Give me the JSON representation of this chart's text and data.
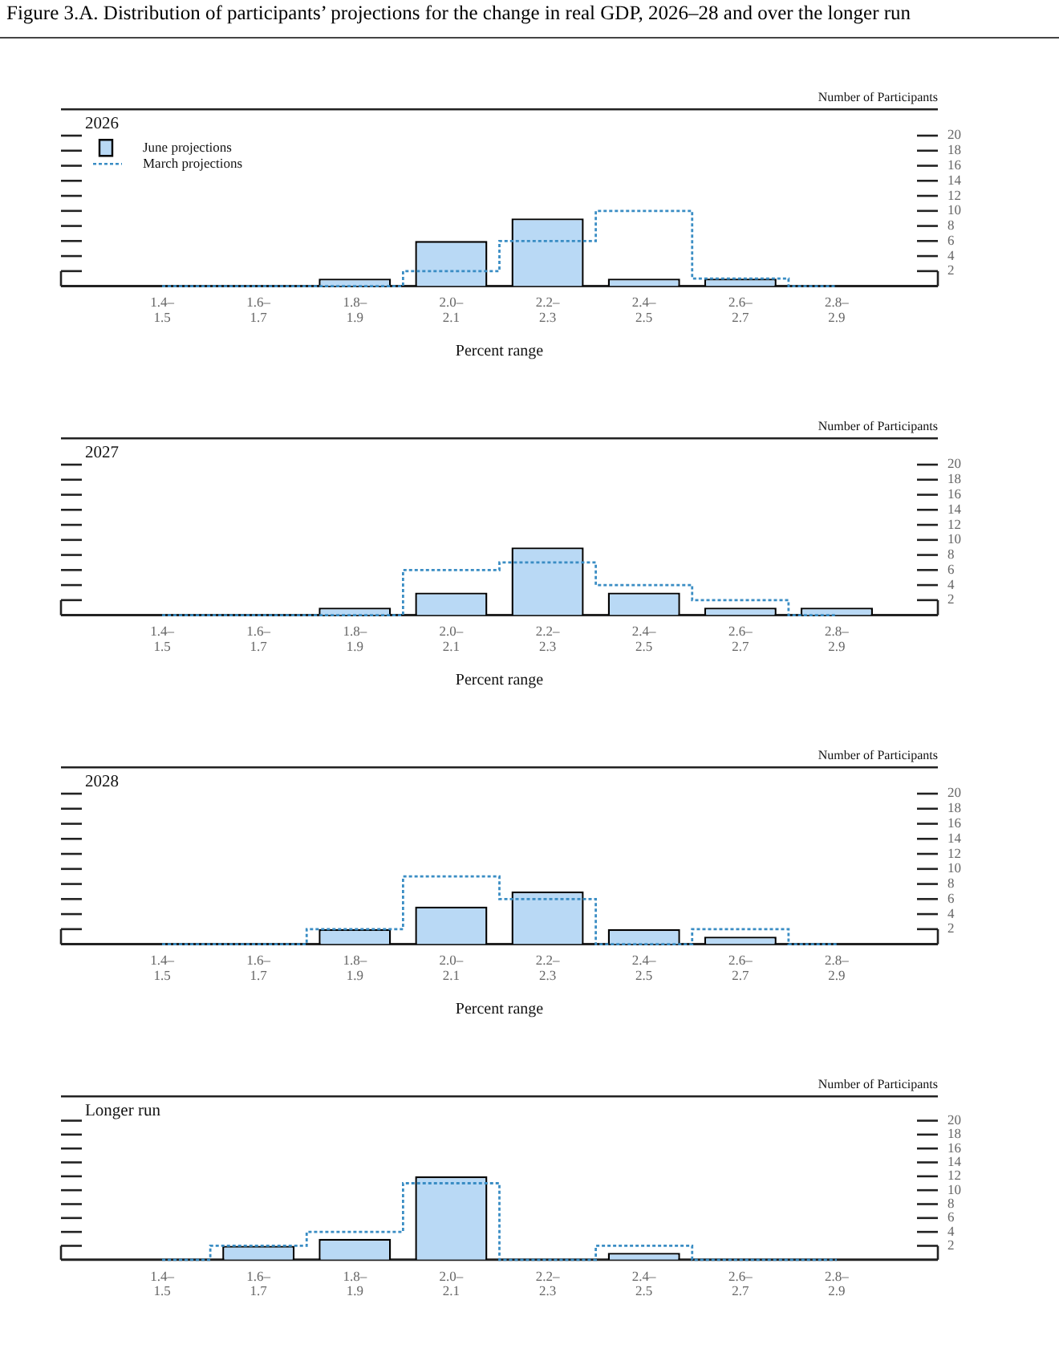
{
  "chart_data": [
    {
      "type": "bar",
      "title": "Figure 3.A. Distribution of participants’ projections for the change in real GDP, 2026–28 and over the longer run",
      "subtitle": "2026",
      "xlabel": "Percent range",
      "ylabel": "Number of Participants",
      "categories": [
        "1.4–1.5",
        "1.6–1.7",
        "1.8–1.9",
        "2.0–2.1",
        "2.2–2.3",
        "2.4–2.5",
        "2.6–2.7",
        "2.8–2.9"
      ],
      "series": [
        {
          "name": "June projections",
          "type": "bar",
          "color": "#b9d9f5",
          "values": [
            0,
            0,
            1,
            6,
            9,
            1,
            1,
            0
          ]
        },
        {
          "name": "March projections",
          "type": "step",
          "color": "#3a8dc4",
          "values": [
            0,
            0,
            0,
            2,
            6,
            10,
            1,
            0
          ]
        }
      ],
      "ylim": [
        0,
        23.5
      ],
      "yticks": [
        2,
        4,
        6,
        8,
        10,
        12,
        14,
        16,
        18,
        20
      ],
      "grid": false,
      "legend": "top left",
      "line_style": "dotted"
    },
    {
      "type": "bar",
      "subtitle": "2027",
      "xlabel": "Percent range",
      "ylabel": "Number of Participants",
      "categories": [
        "1.4–1.5",
        "1.6–1.7",
        "1.8–1.9",
        "2.0–2.1",
        "2.2–2.3",
        "2.4–2.5",
        "2.6–2.7",
        "2.8–2.9"
      ],
      "series": [
        {
          "type": "bar",
          "color": "#b9d9f5",
          "values": [
            0,
            0,
            1,
            3,
            9,
            3,
            1,
            1
          ]
        },
        {
          "type": "step",
          "color": "#3a8dc4",
          "values": [
            0,
            0,
            0,
            6,
            7,
            4,
            2,
            0
          ]
        }
      ],
      "ylim": [
        0,
        23.5
      ],
      "yticks": [
        2,
        4,
        6,
        8,
        10,
        12,
        14,
        16,
        18,
        20
      ],
      "grid": false,
      "line_style": "dotted"
    },
    {
      "type": "bar",
      "subtitle": "2028",
      "xlabel": "Percent range",
      "ylabel": "Number of Participants",
      "categories": [
        "1.4–1.5",
        "1.6–1.7",
        "1.8–1.9",
        "2.0–2.1",
        "2.2–2.3",
        "2.4–2.5",
        "2.6–2.7",
        "2.8–2.9"
      ],
      "series": [
        {
          "type": "bar",
          "color": "#b9d9f5",
          "values": [
            0,
            0,
            2,
            5,
            7,
            2,
            1,
            0
          ]
        },
        {
          "type": "step",
          "color": "#3a8dc4",
          "values": [
            0,
            0,
            2,
            9,
            6,
            0,
            2,
            0
          ]
        }
      ],
      "ylim": [
        0,
        23.5
      ],
      "yticks": [
        2,
        4,
        6,
        8,
        10,
        12,
        14,
        16,
        18,
        20
      ],
      "grid": false,
      "line_style": "dotted"
    },
    {
      "type": "bar",
      "subtitle": "Longer run",
      "ylabel": "Number of Participants",
      "categories": [
        "1.4–1.5",
        "1.6–1.7",
        "1.8–1.9",
        "2.0–2.1",
        "2.2–2.3",
        "2.4–2.5",
        "2.6–2.7",
        "2.8–2.9"
      ],
      "series": [
        {
          "type": "bar",
          "color": "#b9d9f5",
          "values": [
            0,
            2,
            3,
            12,
            0,
            1,
            0,
            0
          ]
        },
        {
          "type": "step",
          "color": "#3a8dc4",
          "values": [
            0,
            2,
            4,
            11,
            0,
            2,
            0,
            0
          ]
        }
      ],
      "ylim": [
        0,
        23.5
      ],
      "yticks": [
        2,
        4,
        6,
        8,
        10,
        12,
        14,
        16,
        18,
        20
      ],
      "grid": false,
      "line_style": "dotted"
    }
  ]
}
